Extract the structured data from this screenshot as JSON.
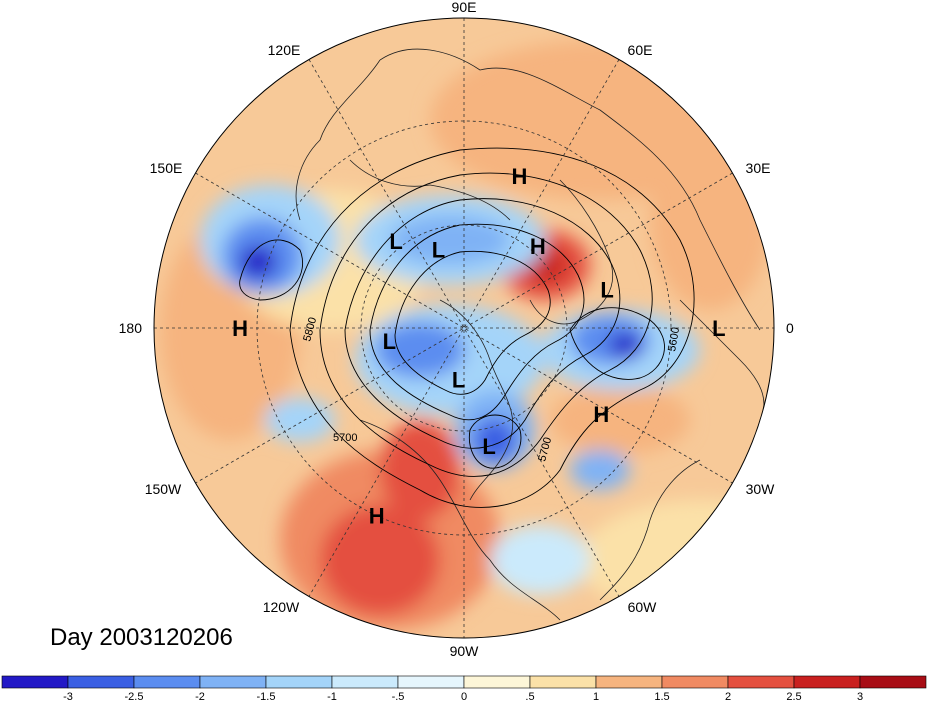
{
  "title": "Day 2003120206",
  "longitude_labels": [
    "90E",
    "60E",
    "30E",
    "0",
    "30W",
    "60W",
    "90W",
    "120W",
    "150W",
    "180",
    "150E",
    "120E"
  ],
  "pressure_centers": [
    {
      "type": "H",
      "lon": 70,
      "lat": 43
    },
    {
      "type": "H",
      "lon": 48,
      "lat": 58
    },
    {
      "type": "L",
      "lon": 108,
      "lat": 66
    },
    {
      "type": "L",
      "lon": 128,
      "lat": 58
    },
    {
      "type": "H",
      "lon": 180,
      "lat": 25
    },
    {
      "type": "L",
      "lon": 15,
      "lat": 47
    },
    {
      "type": "L",
      "lon": 0,
      "lat": 16
    },
    {
      "type": "H",
      "lon": -32,
      "lat": 43
    },
    {
      "type": "L",
      "lon": -170,
      "lat": 68
    },
    {
      "type": "L",
      "lon": -96,
      "lat": 75
    },
    {
      "type": "L",
      "lon": -78,
      "lat": 55
    },
    {
      "type": "H",
      "lon": -115,
      "lat": 30
    }
  ],
  "contour_labels": [
    "5800",
    "5700",
    "5700",
    "5600"
  ],
  "colorbar": {
    "ticks": [
      "-3",
      "-2.5",
      "-2",
      "-1.5",
      "-1",
      "-.5",
      "0",
      ".5",
      "1",
      "1.5",
      "2",
      "2.5",
      "3"
    ],
    "colors": [
      "#2219c6",
      "#3a5fe3",
      "#5b8df0",
      "#7fb2f5",
      "#a4d4f9",
      "#cbeafc",
      "#e6f6fd",
      "#fdf6d8",
      "#fbe1a8",
      "#f6b47f",
      "#f08a62",
      "#e4503f",
      "#c9201f",
      "#a80d15"
    ]
  },
  "colors": {
    "grid": "#333333",
    "contour": "#000000",
    "coast": "#222222"
  }
}
